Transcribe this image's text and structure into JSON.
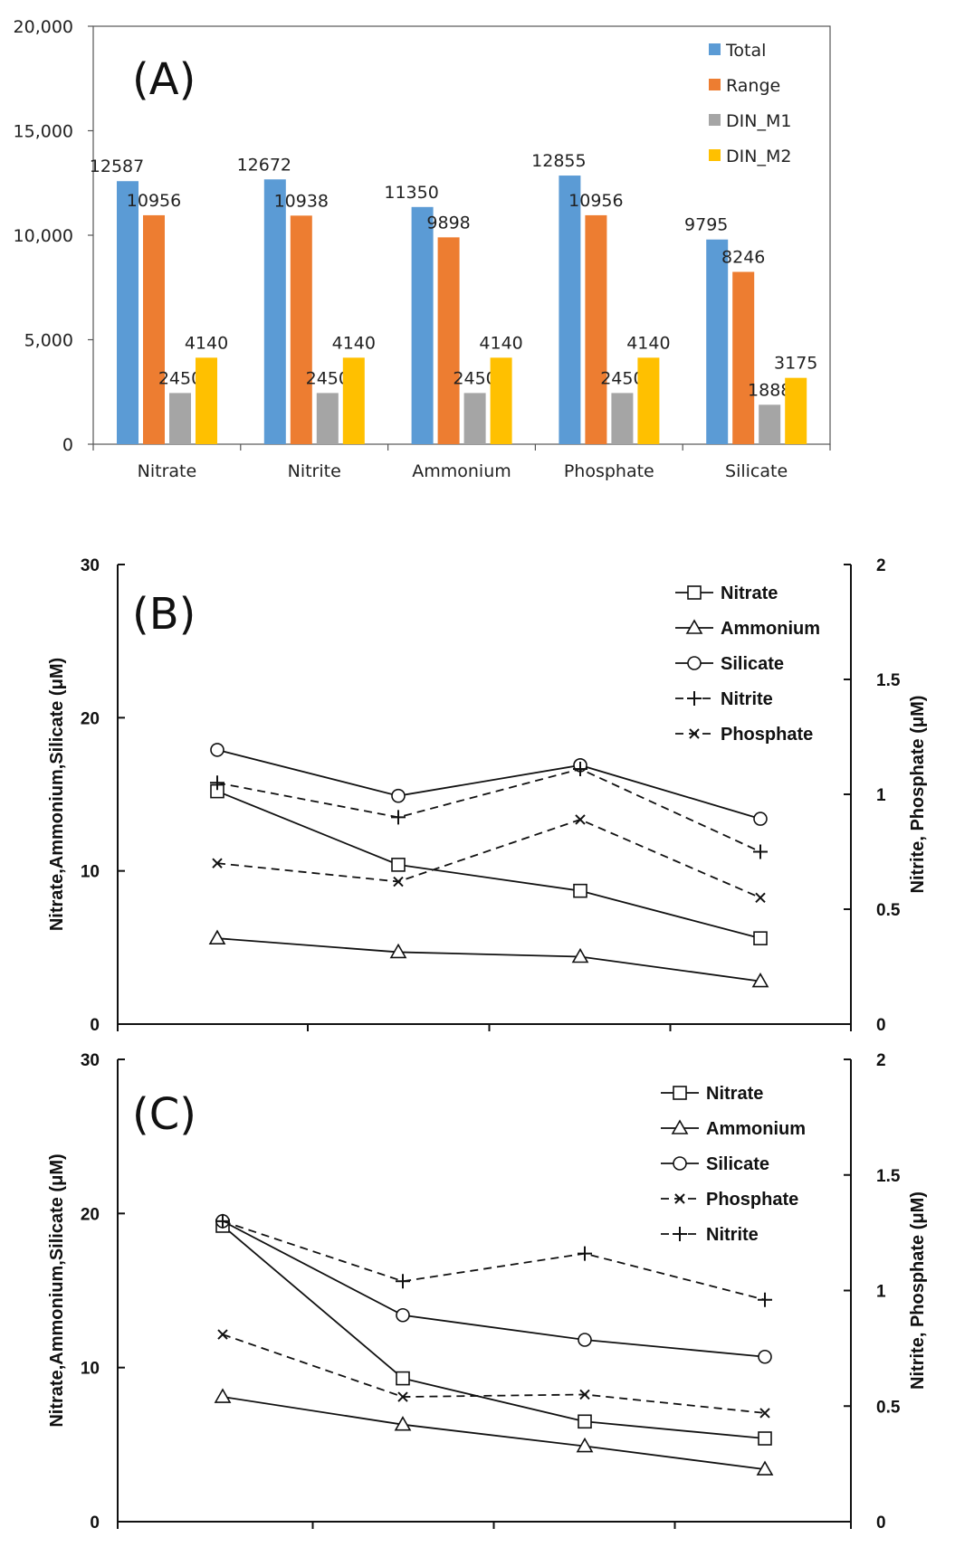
{
  "chart_data": [
    {
      "type": "bar",
      "panel_label": "(A)",
      "categories": [
        "Nitrate",
        "Nitrite",
        "Ammonium",
        "Phosphate",
        "Silicate"
      ],
      "series": [
        {
          "name": "Total",
          "color": "#5b9bd5",
          "values": [
            12587,
            12672,
            11350,
            12855,
            9795
          ]
        },
        {
          "name": "Range",
          "color": "#ed7d31",
          "values": [
            10956,
            10938,
            9898,
            10956,
            8246
          ]
        },
        {
          "name": "DIN_M1",
          "color": "#a5a5a5",
          "values": [
            2450,
            2450,
            2450,
            2450,
            1888
          ]
        },
        {
          "name": "DIN_M2",
          "color": "#ffc000",
          "values": [
            4140,
            4140,
            4140,
            4140,
            3175
          ]
        }
      ],
      "ylim": [
        0,
        20000
      ],
      "yticks": [
        0,
        5000,
        10000,
        15000,
        20000
      ],
      "ytick_labels": [
        "0",
        "5,000",
        "10,000",
        "15,000",
        "20,000"
      ],
      "legend": "top-right",
      "grid": false
    },
    {
      "type": "line",
      "panel_label": "(B)",
      "x": [
        1,
        2,
        3,
        4
      ],
      "y_left_label": "Nitrate,Ammonium,Silicate (μM)",
      "y_right_label": "Nitrite, Phosphate (μM)",
      "ylim_left": [
        0,
        30
      ],
      "ylim_right": [
        0,
        2
      ],
      "yticks_left": [
        "0",
        "10",
        "20",
        "30"
      ],
      "yticks_right": [
        "0",
        "0.5",
        "1",
        "1.5",
        "2"
      ],
      "legend": "top-right",
      "grid": false,
      "series": [
        {
          "name": "Nitrate",
          "axis": "left",
          "marker": "square",
          "dash": false,
          "values": [
            15.2,
            10.4,
            8.7,
            5.6
          ]
        },
        {
          "name": "Ammonium",
          "axis": "left",
          "marker": "triangle",
          "dash": false,
          "values": [
            5.6,
            4.7,
            4.4,
            2.8
          ]
        },
        {
          "name": "Silicate",
          "axis": "left",
          "marker": "circle",
          "dash": false,
          "values": [
            17.9,
            14.9,
            16.9,
            13.4
          ]
        },
        {
          "name": "Nitrite",
          "axis": "right",
          "marker": "plus",
          "dash": true,
          "values": [
            1.05,
            0.9,
            1.11,
            0.75
          ]
        },
        {
          "name": "Phosphate",
          "axis": "right",
          "marker": "x",
          "dash": true,
          "values": [
            0.7,
            0.62,
            0.89,
            0.55
          ]
        }
      ]
    },
    {
      "type": "line",
      "panel_label": "(C)",
      "x": [
        1,
        2,
        3,
        4
      ],
      "y_left_label": "Nitrate,Ammonium,Silicate (μM)",
      "y_right_label": "Nitrite,  Phosphate (μM)",
      "ylim_left": [
        0,
        30
      ],
      "ylim_right": [
        0,
        2
      ],
      "yticks_left": [
        "0",
        "10",
        "20",
        "30"
      ],
      "yticks_right": [
        "0",
        "0.5",
        "1",
        "1.5",
        "2"
      ],
      "legend": "top-right",
      "grid": false,
      "series": [
        {
          "name": "Nitrate",
          "axis": "left",
          "marker": "square",
          "dash": false,
          "values": [
            19.2,
            9.3,
            6.5,
            5.4
          ]
        },
        {
          "name": "Ammonium",
          "axis": "left",
          "marker": "triangle",
          "dash": false,
          "values": [
            8.1,
            6.3,
            4.9,
            3.4
          ]
        },
        {
          "name": "Silicate",
          "axis": "left",
          "marker": "circle",
          "dash": false,
          "values": [
            19.5,
            13.4,
            11.8,
            10.7
          ]
        },
        {
          "name": "Phosphate",
          "axis": "right",
          "marker": "x",
          "dash": true,
          "values": [
            0.81,
            0.54,
            0.55,
            0.47
          ]
        },
        {
          "name": "Nitrite",
          "axis": "right",
          "marker": "plus",
          "dash": true,
          "values": [
            1.3,
            1.04,
            1.16,
            0.96
          ]
        }
      ]
    }
  ]
}
